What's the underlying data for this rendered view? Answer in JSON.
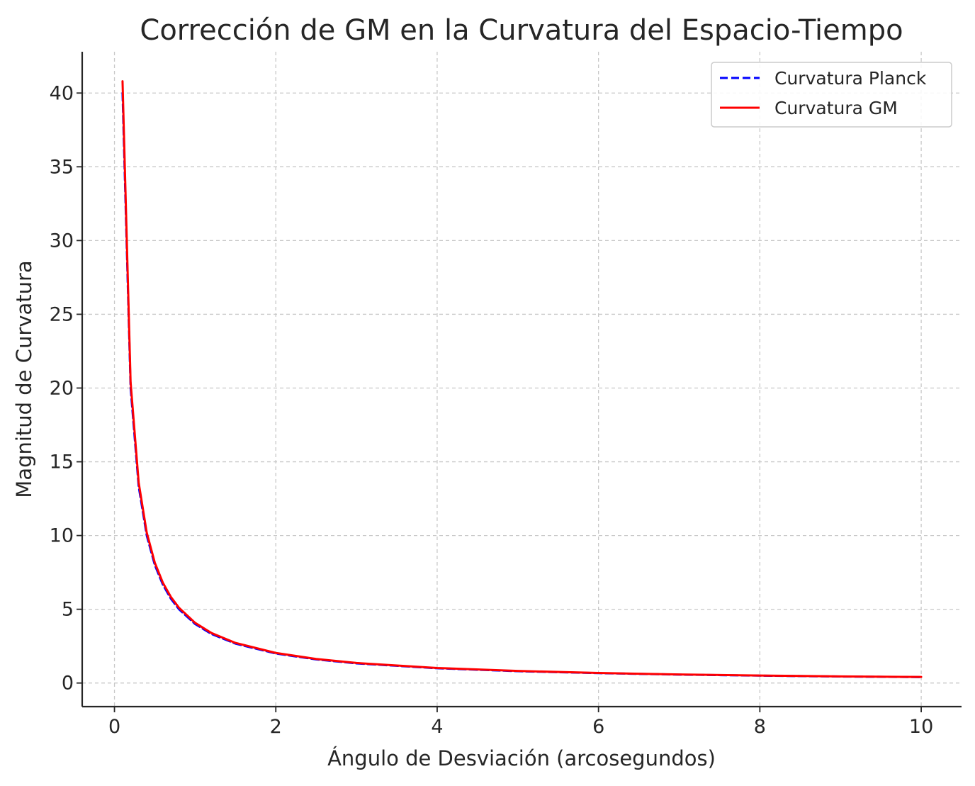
{
  "chart_data": {
    "type": "line",
    "title": "Corrección de GM en la Curvatura del Espacio-Tiempo",
    "xlabel": "Ángulo de Desviación (arcosegundos)",
    "ylabel": "Magnitud de Curvatura",
    "xlim": [
      -0.4,
      10.5
    ],
    "ylim": [
      -1.6,
      42.8
    ],
    "xticks": [
      0,
      2,
      4,
      6,
      8,
      10
    ],
    "xtick_labels": [
      "0",
      "2",
      "4",
      "6",
      "8",
      "10"
    ],
    "yticks": [
      0,
      5,
      10,
      15,
      20,
      25,
      30,
      35,
      40
    ],
    "ytick_labels": [
      "0",
      "5",
      "10",
      "15",
      "20",
      "25",
      "30",
      "35",
      "40"
    ],
    "grid": true,
    "legend_position": "top-right",
    "series": [
      {
        "name": "Curvatura Planck",
        "color": "#0000ff",
        "style": "dashed",
        "x": [
          0.1,
          0.2,
          0.3,
          0.4,
          0.5,
          0.6,
          0.7,
          0.8,
          1.0,
          1.2,
          1.5,
          2.0,
          2.5,
          3.0,
          4.0,
          5.0,
          6.0,
          7.0,
          8.0,
          9.0,
          10.0
        ],
        "y": [
          40.0,
          20.0,
          13.33,
          10.0,
          8.0,
          6.67,
          5.71,
          5.0,
          4.0,
          3.33,
          2.67,
          2.0,
          1.6,
          1.33,
          1.0,
          0.8,
          0.67,
          0.57,
          0.5,
          0.44,
          0.4
        ]
      },
      {
        "name": "Curvatura GM",
        "color": "#ff0000",
        "style": "solid",
        "x": [
          0.1,
          0.2,
          0.3,
          0.4,
          0.5,
          0.6,
          0.7,
          0.8,
          1.0,
          1.2,
          1.5,
          2.0,
          2.5,
          3.0,
          4.0,
          5.0,
          6.0,
          7.0,
          8.0,
          9.0,
          10.0
        ],
        "y": [
          40.8,
          20.4,
          13.6,
          10.2,
          8.16,
          6.8,
          5.83,
          5.1,
          4.08,
          3.4,
          2.72,
          2.04,
          1.63,
          1.36,
          1.02,
          0.82,
          0.68,
          0.58,
          0.51,
          0.45,
          0.41
        ]
      }
    ]
  }
}
